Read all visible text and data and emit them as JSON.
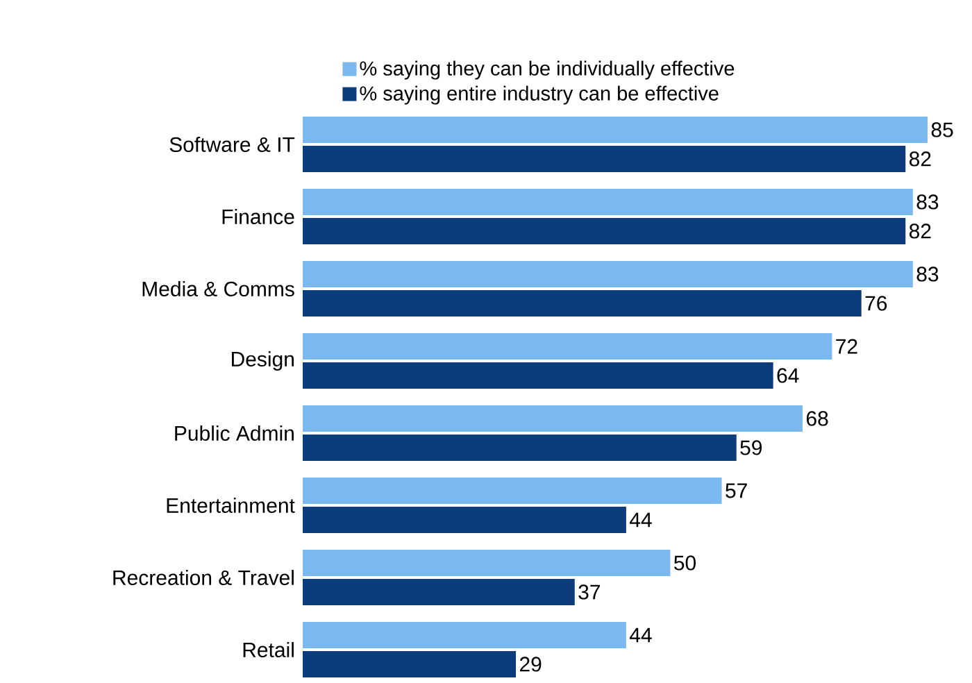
{
  "chart_data": {
    "type": "bar",
    "orientation": "horizontal",
    "categories": [
      "Software & IT",
      "Finance",
      "Media & Comms",
      "Design",
      "Public Admin",
      "Entertainment",
      "Recreation & Travel",
      "Retail"
    ],
    "series": [
      {
        "name": "% saying they can be individually effective",
        "color": "#7ab8ee",
        "values": [
          85,
          83,
          83,
          72,
          68,
          57,
          50,
          44
        ]
      },
      {
        "name": "% saying entire industry can be effective",
        "color": "#0d3c7c",
        "values": [
          82,
          82,
          76,
          64,
          59,
          44,
          37,
          29
        ]
      }
    ],
    "data_labels": true,
    "legend": "top",
    "tick_labels": "y"
  }
}
